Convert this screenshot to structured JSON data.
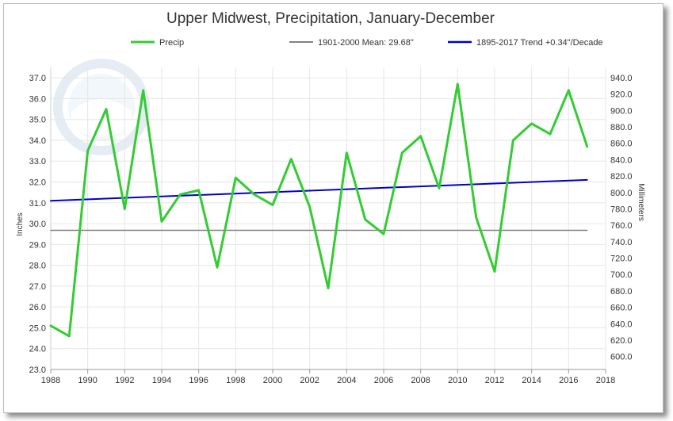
{
  "chart_data": {
    "type": "line",
    "title": "Upper Midwest, Precipitation, January-December",
    "ylabel": "Inches",
    "y2label": "Millimeters",
    "xlabel": "",
    "xlim": [
      1988,
      2018
    ],
    "ylim": [
      23.0,
      37.5
    ],
    "y2lim": [
      584.2,
      952.5
    ],
    "x_ticks": [
      1988,
      1990,
      1992,
      1994,
      1996,
      1998,
      2000,
      2002,
      2004,
      2006,
      2008,
      2010,
      2012,
      2014,
      2016,
      2018
    ],
    "y_ticks": [
      "23.0",
      "24.0",
      "25.0",
      "26.0",
      "27.0",
      "28.0",
      "29.0",
      "30.0",
      "31.0",
      "32.0",
      "33.0",
      "34.0",
      "35.0",
      "36.0",
      "37.0"
    ],
    "y2_ticks": [
      "600.0",
      "620.0",
      "640.0",
      "660.0",
      "680.0",
      "700.0",
      "720.0",
      "740.0",
      "760.0",
      "780.0",
      "800.0",
      "820.0",
      "840.0",
      "860.0",
      "880.0",
      "900.0",
      "920.0",
      "940.0"
    ],
    "grid": true,
    "legend_position": "top",
    "series": [
      {
        "name": "Precip",
        "color": "#33cc33",
        "x": [
          1988,
          1989,
          1990,
          1991,
          1992,
          1993,
          1994,
          1995,
          1996,
          1997,
          1998,
          1999,
          2000,
          2001,
          2002,
          2003,
          2004,
          2005,
          2006,
          2007,
          2008,
          2009,
          2010,
          2011,
          2012,
          2013,
          2014,
          2015,
          2016,
          2017
        ],
        "values": [
          25.1,
          24.6,
          33.5,
          35.5,
          30.7,
          36.4,
          30.1,
          31.4,
          31.6,
          27.9,
          32.2,
          31.4,
          30.9,
          33.1,
          30.8,
          26.9,
          33.4,
          30.2,
          29.5,
          33.4,
          34.2,
          31.7,
          36.7,
          30.3,
          27.7,
          34.0,
          34.8,
          34.3,
          36.4,
          33.7
        ]
      },
      {
        "name": "1901-2000 Mean: 29.68\"",
        "color": "#808080",
        "x": [
          1988,
          2017
        ],
        "values": [
          29.68,
          29.68
        ]
      },
      {
        "name": "1895-2017 Trend +0.34\"/Decade",
        "color": "#0000cc",
        "x": [
          1988,
          2017
        ],
        "values": [
          31.1,
          32.1
        ]
      }
    ]
  },
  "legend": {
    "precip": "Precip",
    "mean": "1901-2000 Mean: 29.68\"",
    "trend": "1895-2017 Trend +0.34\"/Decade"
  }
}
